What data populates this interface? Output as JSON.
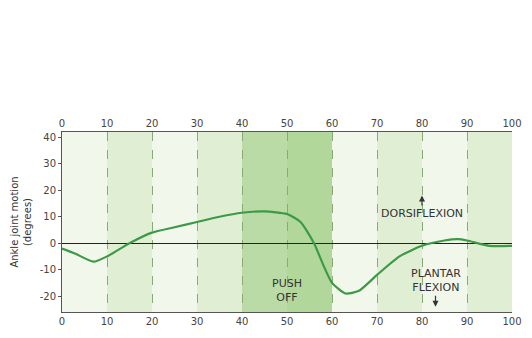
{
  "chart_data": {
    "type": "line",
    "y_label": "Ankle joint motion (degrees)",
    "x": [
      0,
      3,
      7,
      10,
      15,
      20,
      25,
      30,
      35,
      40,
      45,
      50,
      53,
      56,
      58,
      60,
      63,
      66,
      70,
      75,
      80,
      85,
      88,
      90,
      95,
      100
    ],
    "values": [
      -2,
      -4,
      -7,
      -5,
      0,
      4,
      6,
      8,
      10,
      11.5,
      12,
      11,
      8,
      0,
      -8,
      -15,
      -19,
      -18,
      -12,
      -5,
      -1,
      1,
      1.5,
      1,
      -1,
      -1
    ],
    "color": "#3c9a46",
    "xlim": [
      0,
      100
    ],
    "xticks": [
      0,
      10,
      20,
      30,
      40,
      50,
      60,
      70,
      80,
      90,
      100
    ],
    "ylim": [
      -26,
      42
    ],
    "yticks": [
      -20,
      -10,
      0,
      10,
      20,
      30,
      40
    ],
    "grid": true,
    "annotations": [
      "DORSIFLEXION",
      "PLANTAR FLEXION"
    ],
    "shaded": {
      "text": "PUSH OFF",
      "x0": 40,
      "x1": 60
    }
  }
}
